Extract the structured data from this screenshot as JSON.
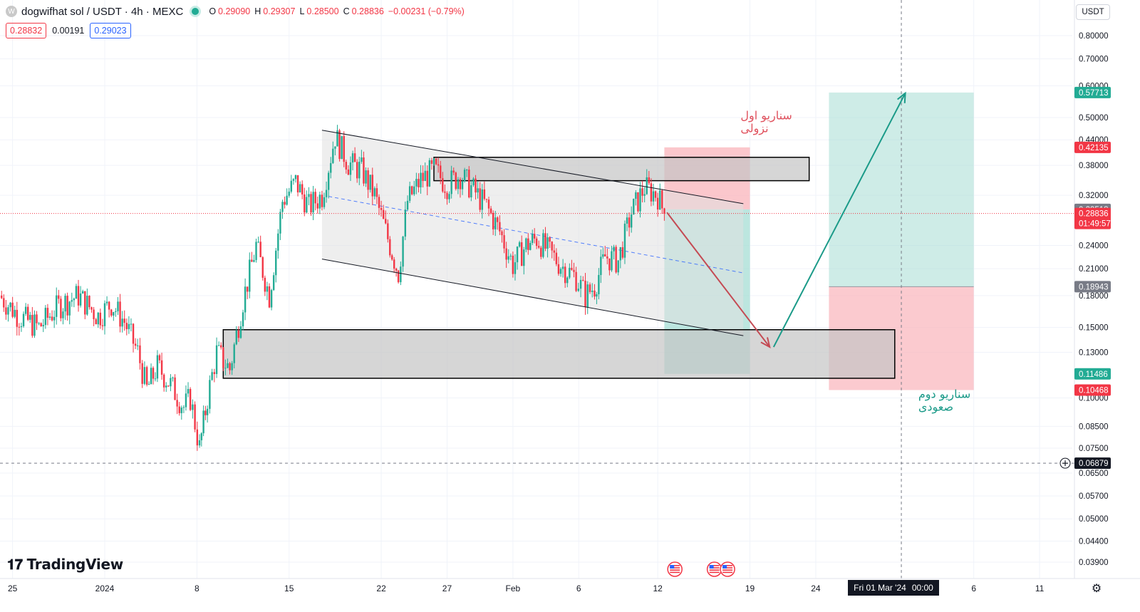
{
  "header": {
    "symbol_logo": "W",
    "title": "dogwifhat sol / USDT · 4h · MEXC",
    "ohlc": [
      {
        "k": "O",
        "v": "0.29090"
      },
      {
        "k": "H",
        "v": "0.29307"
      },
      {
        "k": "L",
        "v": "0.28500"
      },
      {
        "k": "C",
        "v": "0.28836"
      },
      {
        "k": "",
        "v": "−0.00231 (−0.79%)"
      }
    ],
    "bid": "0.28832",
    "spread": "0.00191",
    "ask": "0.29023"
  },
  "currency_button": "USDT",
  "crosshair_date": {
    "day": "Fri 01 Mar '24",
    "time": "00:00"
  },
  "logo_text": "TradingView",
  "colors": {
    "up": "#22ab94",
    "down": "#f23645",
    "channel_fill": "#e0e0e0",
    "zone_fill": "#c4c4c4",
    "long_profit": "#a6ddd4",
    "long_loss": "#f9b4bb",
    "scenario_red": "#e0525e",
    "scenario_green": "#1a9a88"
  },
  "chart_data": {
    "type": "candlestick",
    "instrument": "dogwifhat sol / USDT",
    "timeframe": "4h",
    "exchange": "MEXC",
    "y_scale": "log",
    "ylim": [
      0.0355,
      0.9
    ],
    "x_ticks": [
      {
        "label": "25",
        "day": -7
      },
      {
        "label": "2024",
        "day": 0
      },
      {
        "label": "8",
        "day": 7
      },
      {
        "label": "15",
        "day": 14
      },
      {
        "label": "22",
        "day": 21
      },
      {
        "label": "27",
        "day": 26
      },
      {
        "label": "Feb",
        "day": 31
      },
      {
        "label": "6",
        "day": 36
      },
      {
        "label": "12",
        "day": 42
      },
      {
        "label": "19",
        "day": 49
      },
      {
        "label": "24",
        "day": 54
      },
      {
        "label": "6",
        "day": 66
      },
      {
        "label": "11",
        "day": 71
      }
    ],
    "y_ticks": [
      "0.80000",
      "0.70000",
      "0.60000",
      "0.50000",
      "0.44000",
      "0.38000",
      "0.32000",
      "0.24000",
      "0.21000",
      "0.18000",
      "0.15000",
      "0.13000",
      "0.10000",
      "0.08500",
      "0.07500",
      "0.06500",
      "0.05700",
      "0.05000",
      "0.04400",
      "0.03900"
    ],
    "price_labels": [
      {
        "value": 0.57713,
        "text": "0.57713",
        "kind": "green"
      },
      {
        "value": 0.42135,
        "text": "0.42135",
        "kind": "red"
      },
      {
        "value": 0.29518,
        "text": "0.29518",
        "kind": "gray"
      },
      {
        "value": 0.28836,
        "text": "0.28836",
        "sub": "01:49:57",
        "kind": "red-current"
      },
      {
        "value": 0.18943,
        "text": "0.18943",
        "kind": "gray"
      },
      {
        "value": 0.11486,
        "text": "0.11486",
        "kind": "green"
      },
      {
        "value": 0.10468,
        "text": "0.10468",
        "kind": "red"
      },
      {
        "value": 0.06879,
        "text": "0.06879",
        "kind": "dark"
      }
    ],
    "close_path": [
      {
        "day": -8.0,
        "close": 0.18
      },
      {
        "day": -6.5,
        "close": 0.16
      },
      {
        "day": -5.0,
        "close": 0.15
      },
      {
        "day": -3.5,
        "close": 0.17
      },
      {
        "day": -2.0,
        "close": 0.18
      },
      {
        "day": -0.5,
        "close": 0.16
      },
      {
        "day": 0.5,
        "close": 0.172
      },
      {
        "day": 1.5,
        "close": 0.155
      },
      {
        "day": 2.5,
        "close": 0.13
      },
      {
        "day": 3.2,
        "close": 0.105
      },
      {
        "day": 4.0,
        "close": 0.12
      },
      {
        "day": 5.0,
        "close": 0.108
      },
      {
        "day": 6.0,
        "close": 0.095
      },
      {
        "day": 6.5,
        "close": 0.1
      },
      {
        "day": 7.2,
        "close": 0.075
      },
      {
        "day": 7.8,
        "close": 0.1
      },
      {
        "day": 8.5,
        "close": 0.13
      },
      {
        "day": 9.5,
        "close": 0.118
      },
      {
        "day": 10.5,
        "close": 0.175
      },
      {
        "day": 11.5,
        "close": 0.24
      },
      {
        "day": 12.5,
        "close": 0.18
      },
      {
        "day": 13.5,
        "close": 0.31
      },
      {
        "day": 14.5,
        "close": 0.345
      },
      {
        "day": 15.5,
        "close": 0.3
      },
      {
        "day": 16.5,
        "close": 0.32
      },
      {
        "day": 17.5,
        "close": 0.45
      },
      {
        "day": 18.5,
        "close": 0.385
      },
      {
        "day": 19.5,
        "close": 0.37
      },
      {
        "day": 20.5,
        "close": 0.32
      },
      {
        "day": 21.5,
        "close": 0.25
      },
      {
        "day": 22.3,
        "close": 0.205
      },
      {
        "day": 23.0,
        "close": 0.31
      },
      {
        "day": 24.0,
        "close": 0.35
      },
      {
        "day": 25.0,
        "close": 0.37
      },
      {
        "day": 26.0,
        "close": 0.34
      },
      {
        "day": 27.0,
        "close": 0.36
      },
      {
        "day": 28.0,
        "close": 0.33
      },
      {
        "day": 29.0,
        "close": 0.3
      },
      {
        "day": 30.0,
        "close": 0.26
      },
      {
        "day": 31.0,
        "close": 0.215
      },
      {
        "day": 32.0,
        "close": 0.24
      },
      {
        "day": 32.8,
        "close": 0.25
      },
      {
        "day": 33.8,
        "close": 0.23
      },
      {
        "day": 34.8,
        "close": 0.212
      },
      {
        "day": 35.8,
        "close": 0.2
      },
      {
        "day": 36.5,
        "close": 0.18
      },
      {
        "day": 37.2,
        "close": 0.19
      },
      {
        "day": 38.0,
        "close": 0.225
      },
      {
        "day": 39.0,
        "close": 0.22
      },
      {
        "day": 40.0,
        "close": 0.29
      },
      {
        "day": 41.0,
        "close": 0.335
      },
      {
        "day": 42.0,
        "close": 0.32
      },
      {
        "day": 42.5,
        "close": 0.28836
      }
    ],
    "drawings": {
      "channel_upper": [
        {
          "day": 16.5,
          "price": 0.465
        },
        {
          "day": 48.5,
          "price": 0.305
        }
      ],
      "channel_lower": [
        {
          "day": 16.5,
          "price": 0.222
        },
        {
          "day": 48.5,
          "price": 0.143
        }
      ],
      "channel_mid_dashed": [
        {
          "day": 17.0,
          "price": 0.318
        },
        {
          "day": 48.5,
          "price": 0.205
        }
      ],
      "resistance_zone": {
        "day_from": 25.0,
        "day_to": 53.5,
        "price_from": 0.348,
        "price_to": 0.398
      },
      "support_zone": {
        "day_from": 9.0,
        "day_to": 60.0,
        "price_from": 0.112,
        "price_to": 0.148
      },
      "short_position": {
        "day_from": 42.5,
        "day_to": 49.0,
        "entry": 0.29518,
        "stop": 0.42135,
        "target": 0.11486
      },
      "long_position": {
        "day_from": 55.0,
        "day_to": 66.0,
        "entry": 0.18943,
        "stop": 0.10468,
        "target": 0.57713
      },
      "bearish_arrow": [
        {
          "day": 42.7,
          "price": 0.29
        },
        {
          "day": 50.5,
          "price": 0.134
        }
      ],
      "bullish_arrow": [
        {
          "day": 50.8,
          "price": 0.134
        },
        {
          "day": 60.8,
          "price": 0.575
        }
      ],
      "crosshair_day": 60.5,
      "crosshair_price": 0.06879,
      "current_price": 0.28836,
      "event_markers": [
        {
          "day": 43.3
        },
        {
          "day": 46.3
        },
        {
          "day": 47.3
        }
      ]
    },
    "annotations": [
      {
        "lines": [
          "سناریو اول",
          "نزولی"
        ],
        "day": 44.5,
        "price": 0.495,
        "color": "red"
      },
      {
        "lines": [
          "سناریو دوم",
          "صعودی"
        ],
        "day": 58.0,
        "price": 0.1,
        "color": "green"
      }
    ]
  }
}
